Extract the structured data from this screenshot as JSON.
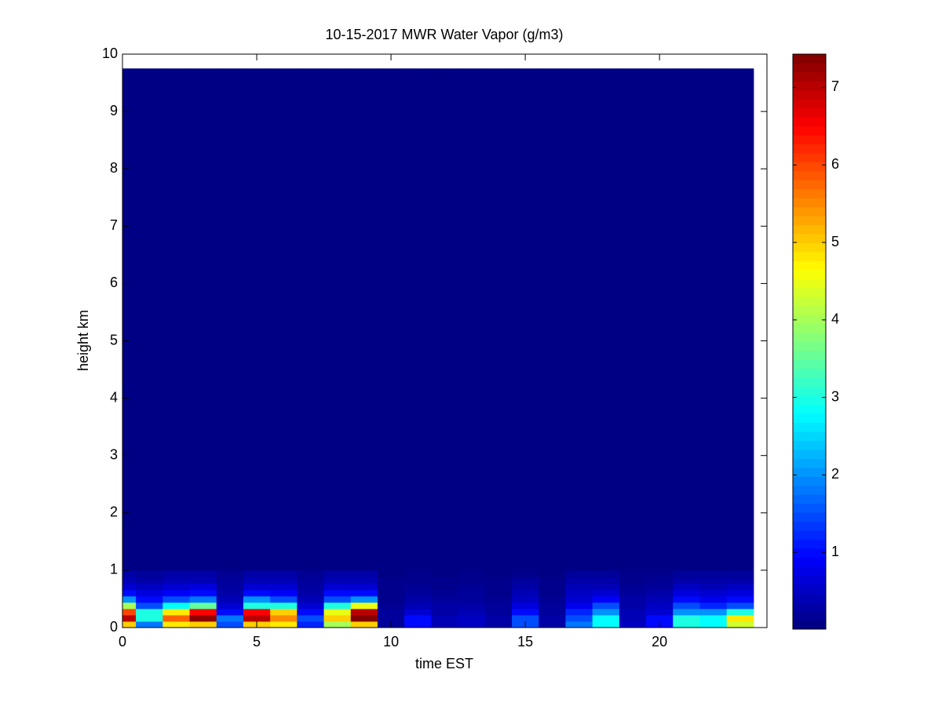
{
  "chart_data": {
    "type": "heatmap",
    "title": "10-15-2017 MWR Water Vapor (g/m3)",
    "x_label": "time EST",
    "y_label": "height km",
    "colormap": "jet",
    "x": [
      0,
      1,
      2,
      3,
      4,
      5,
      6,
      7,
      8,
      9,
      10,
      11,
      12,
      13,
      14,
      15,
      16,
      17,
      18,
      19,
      20,
      21,
      22,
      23
    ],
    "y_edges": [
      0,
      0.11,
      0.22,
      0.33,
      0.44,
      0.55,
      0.66,
      0.77,
      0.88,
      1.0,
      9.75
    ],
    "values": [
      [
        5,
        1.8,
        4.8,
        5,
        1.5,
        5,
        4.8,
        1.2,
        4,
        5,
        0.2,
        1,
        0.4,
        0.5,
        0.3,
        1.5,
        0.3,
        1.8,
        2.8,
        0.5,
        1,
        3,
        2.8,
        4.3
      ],
      [
        7,
        3,
        5.8,
        7.3,
        1.8,
        7,
        5.5,
        1.5,
        5,
        7.4,
        0.2,
        1,
        0.4,
        0.5,
        0.3,
        1.5,
        0.3,
        1.5,
        2.8,
        0.4,
        1,
        3,
        2.8,
        4.8
      ],
      [
        6,
        3,
        4.8,
        6.5,
        1,
        6.5,
        5,
        1,
        4.5,
        7,
        0.2,
        0.6,
        0.3,
        0.4,
        0.2,
        1,
        0.2,
        1.2,
        2,
        0.4,
        0.6,
        2,
        2,
        3
      ],
      [
        4,
        1.5,
        2.8,
        3.5,
        0.6,
        3,
        3,
        0.6,
        3,
        4.5,
        0.15,
        0.4,
        0.3,
        0.3,
        0.2,
        0.7,
        0.2,
        0.8,
        1.5,
        0.3,
        0.5,
        1.5,
        1.2,
        1.5
      ],
      [
        2,
        1,
        1.5,
        1.8,
        0.4,
        2,
        1.5,
        0.4,
        1.5,
        2,
        0.1,
        0.3,
        0.2,
        0.2,
        0.15,
        0.5,
        0.15,
        0.6,
        0.9,
        0.3,
        0.4,
        1,
        0.8,
        1
      ],
      [
        1,
        0.7,
        0.9,
        1,
        0.3,
        1,
        0.9,
        0.3,
        1,
        1,
        0.1,
        0.2,
        0.15,
        0.2,
        0.1,
        0.4,
        0.1,
        0.5,
        0.6,
        0.2,
        0.3,
        0.7,
        0.6,
        0.7
      ],
      [
        0.6,
        0.5,
        0.6,
        0.7,
        0.25,
        0.6,
        0.6,
        0.25,
        0.6,
        0.6,
        0.1,
        0.15,
        0.1,
        0.15,
        0.1,
        0.3,
        0.1,
        0.4,
        0.4,
        0.15,
        0.2,
        0.5,
        0.4,
        0.5
      ],
      [
        0.4,
        0.3,
        0.4,
        0.4,
        0.2,
        0.4,
        0.4,
        0.2,
        0.4,
        0.4,
        0.1,
        0.1,
        0.1,
        0.1,
        0.1,
        0.2,
        0.1,
        0.3,
        0.3,
        0.1,
        0.15,
        0.3,
        0.3,
        0.3
      ],
      [
        0.3,
        0.2,
        0.3,
        0.3,
        0.15,
        0.3,
        0.3,
        0.15,
        0.3,
        0.3,
        0.05,
        0.1,
        0.05,
        0.1,
        0.05,
        0.1,
        0.05,
        0.2,
        0.2,
        0.1,
        0.1,
        0.2,
        0.2,
        0.2
      ],
      [
        0.05,
        0.05,
        0.05,
        0.05,
        0.05,
        0.05,
        0.05,
        0.05,
        0.05,
        0.05,
        0.05,
        0.05,
        0.05,
        0.05,
        0.05,
        0.05,
        0.05,
        0.05,
        0.05,
        0.05,
        0.05,
        0.05,
        0.05,
        0.05
      ]
    ],
    "xlim": [
      0,
      24
    ],
    "xticks": [
      0,
      5,
      10,
      15,
      20
    ],
    "ylim": [
      0,
      10
    ],
    "yticks": [
      0,
      1,
      2,
      3,
      4,
      5,
      6,
      7,
      8,
      9,
      10
    ],
    "clim": [
      0.01,
      7.43
    ],
    "cticks": [
      1,
      2,
      3,
      4,
      5,
      6,
      7
    ]
  }
}
